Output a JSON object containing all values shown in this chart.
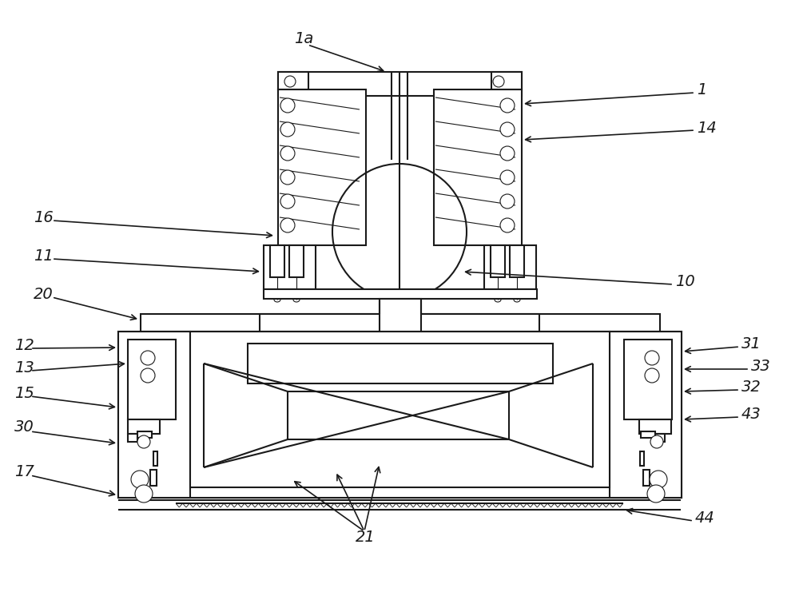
{
  "bg_color": "#ffffff",
  "line_color": "#1a1a1a",
  "lw": 1.5,
  "tlw": 0.8,
  "figsize": [
    10.0,
    7.41
  ],
  "dpi": 100
}
